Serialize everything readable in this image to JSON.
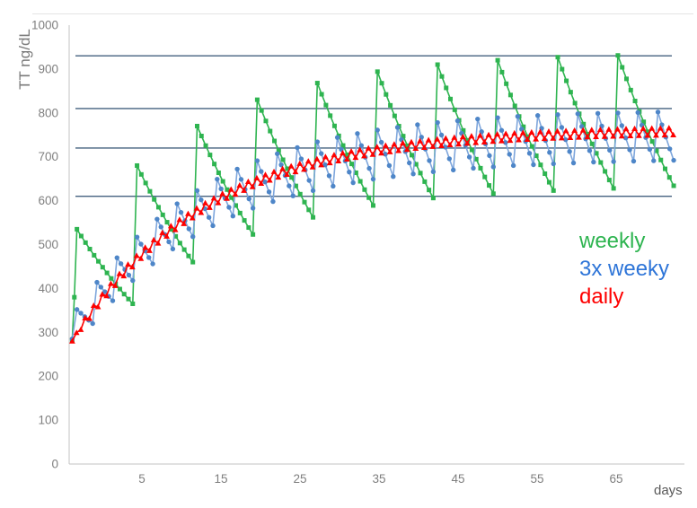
{
  "chart_data": {
    "type": "line",
    "title": "",
    "xlabel": "days",
    "ylabel": "TT ng/dL",
    "ylim": [
      0,
      1000
    ],
    "yticks": [
      0,
      100,
      200,
      300,
      400,
      500,
      600,
      700,
      800,
      900,
      1000
    ],
    "xticks": [
      5,
      15,
      25,
      35,
      45,
      55,
      65
    ],
    "grid": false,
    "legend_position": "right-middle",
    "sample_step_days": 0.5,
    "end_day": 70.5,
    "reference_lines": {
      "values": [
        610,
        720,
        810,
        930
      ],
      "color": "#44617f"
    },
    "series": [
      {
        "name": "weekly",
        "type": "sawtooth",
        "line_color": "#2eb450",
        "marker_color": "#2eb450",
        "marker": "square",
        "injection_interval_days": 7,
        "first_peak_day": 0.8,
        "rise_days": 0.5,
        "lead_in": [
          [
            0.25,
            283
          ],
          [
            0.5,
            380
          ]
        ],
        "peaks": [
          535,
          680,
          770,
          830,
          868,
          894,
          910,
          920,
          927,
          931
        ],
        "troughs": [
          365,
          460,
          523,
          562,
          589,
          606,
          616,
          623,
          628,
          634
        ]
      },
      {
        "name": "3x weeky",
        "type": "sawtooth",
        "line_color": "#7ea6dc",
        "marker_color": "#4e86c8",
        "marker": "circle",
        "injection_interval_days": 2.3333,
        "first_peak_day": 0.8,
        "rise_days": 0.5,
        "lead_in": [
          [
            0.25,
            285
          ]
        ],
        "peaks": [
          352,
          414,
          470,
          517,
          558,
          593,
          623,
          649,
          672,
          691,
          707,
          721,
          734,
          744,
          753,
          761,
          767,
          773,
          778,
          782,
          786,
          789,
          792,
          794,
          796,
          798,
          799,
          800,
          801,
          802
        ],
        "troughs": [
          320,
          372,
          418,
          456,
          490,
          518,
          543,
          565,
          583,
          598,
          611,
          623,
          633,
          641,
          649,
          655,
          661,
          666,
          670,
          674,
          677,
          680,
          682,
          684,
          686,
          688,
          689,
          690,
          691,
          692
        ]
      },
      {
        "name": "daily",
        "type": "daily_zigzag",
        "line_color": "#fe0000",
        "marker_color": "#fe0000",
        "marker": "triangle",
        "start_day": 0.25,
        "start_value": 281,
        "plateau": 763,
        "tau_days": 15.4,
        "amplitude": 8
      }
    ]
  },
  "legend": {
    "items": [
      {
        "label": "weekly",
        "color": "#2eb450"
      },
      {
        "label": "3x weeky",
        "color": "#2e75d8"
      },
      {
        "label": "daily",
        "color": "#fe0000"
      }
    ]
  },
  "axis_text_color": "#7f7f7f"
}
